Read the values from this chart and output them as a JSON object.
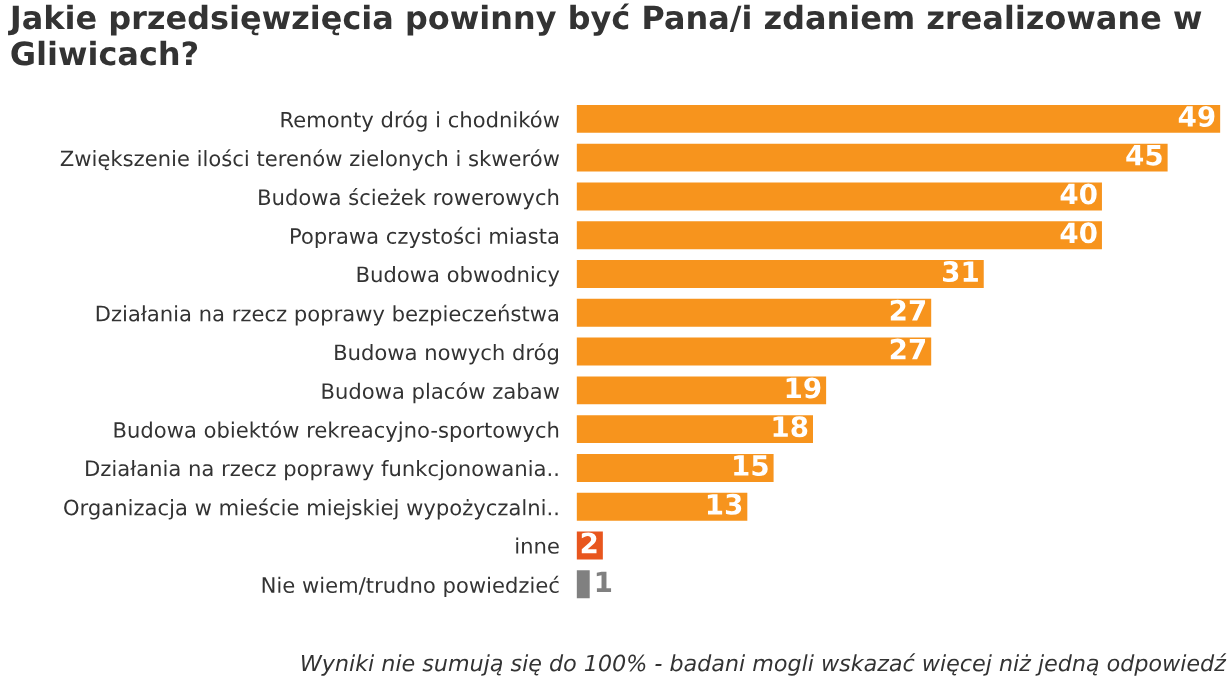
{
  "chart_data": {
    "type": "bar",
    "orientation": "horizontal",
    "title": "Jakie przedsięwzięcia powinny być Pana/i zdaniem zrealizowane w Gliwicach?",
    "categories": [
      "Remonty dróg i chodników",
      "Zwiększenie ilości terenów zielonych i skwerów",
      "Budowa ścieżek rowerowych",
      "Poprawa czystości miasta",
      "Budowa obwodnicy",
      "Działania na rzecz poprawy bezpieczeństwa",
      "Budowa nowych dróg",
      "Budowa placów zabaw",
      "Budowa obiektów rekreacyjno-sportowych",
      "Działania na rzecz poprawy funkcjonowania..",
      "Organizacja w mieście miejskiej wypożyczalni..",
      "inne",
      "Nie wiem/trudno powiedzieć"
    ],
    "values": [
      49,
      45,
      40,
      40,
      31,
      27,
      27,
      19,
      18,
      15,
      13,
      2,
      1
    ],
    "colors": [
      "#f7941d",
      "#f7941d",
      "#f7941d",
      "#f7941d",
      "#f7941d",
      "#f7941d",
      "#f7941d",
      "#f7941d",
      "#f7941d",
      "#f7941d",
      "#f7941d",
      "#e8561e",
      "#808080"
    ],
    "data_labels": true,
    "tick_labels": "y",
    "grid": false,
    "legend": false,
    "annotations": [
      "Wyniki nie sumują się do 100% - badani mogli wskazać więcej niż jedną odpowiedź"
    ]
  }
}
